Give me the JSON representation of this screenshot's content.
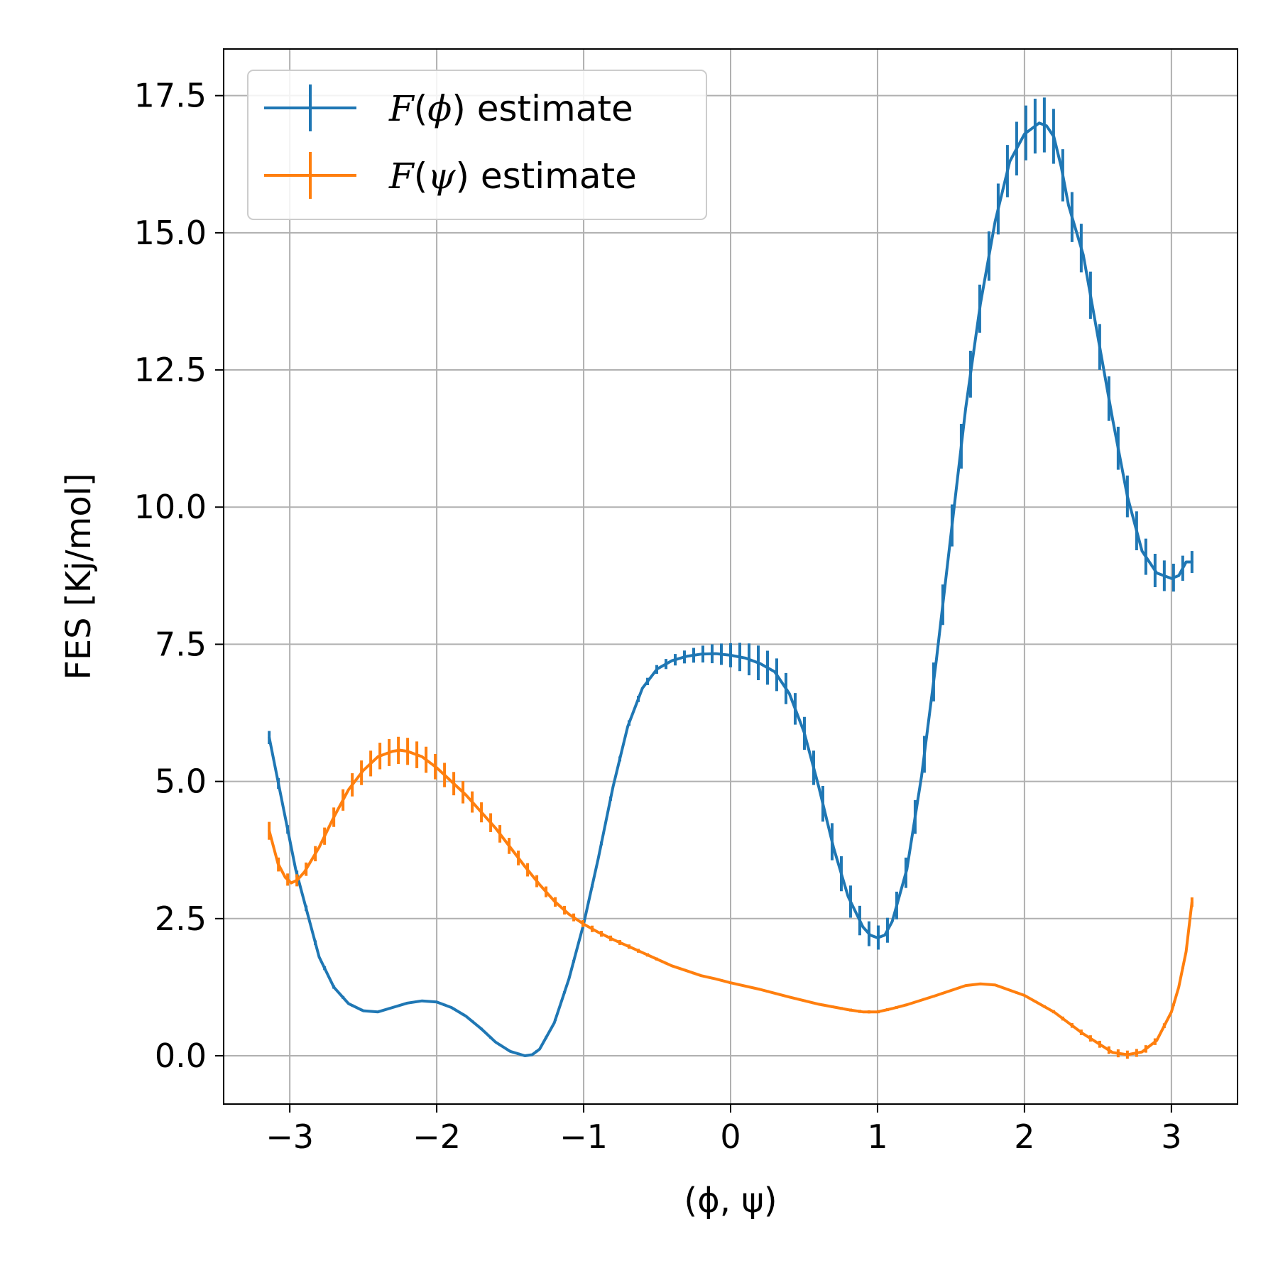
{
  "chart_data": {
    "type": "line",
    "title": "",
    "xlabel": "(ϕ, ψ)",
    "ylabel": "FES [Kj/mol]",
    "xlim": [
      -3.45,
      3.45
    ],
    "ylim": [
      -0.88,
      18.35
    ],
    "grid": true,
    "legend_position": "top-left",
    "x_ticks": [
      -3,
      -2,
      -1,
      0,
      1,
      2,
      3
    ],
    "x_tick_labels": [
      "−3",
      "−2",
      "−1",
      "0",
      "1",
      "2",
      "3"
    ],
    "y_ticks": [
      0,
      2.5,
      5,
      7.5,
      10,
      12.5,
      15,
      17.5
    ],
    "y_tick_labels": [
      "0.0",
      "2.5",
      "5.0",
      "7.5",
      "10.0",
      "12.5",
      "15.0",
      "17.5"
    ],
    "series": [
      {
        "name": "F(ϕ) estimate",
        "legend_func": "F",
        "legend_var": "ϕ",
        "legend_suffix": "estimate",
        "color": "#1f77b4",
        "x": [
          -3.14,
          -3.08,
          -3.02,
          -2.96,
          -2.9,
          -2.8,
          -2.7,
          -2.6,
          -2.5,
          -2.4,
          -2.3,
          -2.2,
          -2.1,
          -2.0,
          -1.9,
          -1.8,
          -1.7,
          -1.6,
          -1.5,
          -1.4,
          -1.35,
          -1.3,
          -1.2,
          -1.1,
          -1.0,
          -0.9,
          -0.8,
          -0.7,
          -0.6,
          -0.5,
          -0.4,
          -0.3,
          -0.2,
          -0.1,
          0.0,
          0.1,
          0.2,
          0.3,
          0.4,
          0.5,
          0.6,
          0.7,
          0.8,
          0.9,
          0.95,
          1.0,
          1.05,
          1.1,
          1.2,
          1.3,
          1.4,
          1.5,
          1.6,
          1.7,
          1.8,
          1.9,
          2.0,
          2.1,
          2.15,
          2.2,
          2.25,
          2.3,
          2.4,
          2.5,
          2.6,
          2.7,
          2.8,
          2.9,
          3.0,
          3.05,
          3.1,
          3.14
        ],
        "y": [
          5.8,
          5.0,
          4.2,
          3.4,
          2.8,
          1.8,
          1.25,
          0.95,
          0.82,
          0.8,
          0.88,
          0.96,
          1.0,
          0.98,
          0.88,
          0.72,
          0.5,
          0.25,
          0.08,
          0.0,
          0.02,
          0.12,
          0.6,
          1.4,
          2.4,
          3.6,
          4.9,
          6.0,
          6.7,
          7.05,
          7.2,
          7.28,
          7.32,
          7.33,
          7.3,
          7.25,
          7.15,
          7.0,
          6.6,
          5.9,
          4.9,
          3.8,
          2.9,
          2.35,
          2.2,
          2.15,
          2.2,
          2.45,
          3.4,
          5.1,
          7.2,
          9.5,
          11.8,
          13.7,
          15.2,
          16.3,
          16.8,
          17.0,
          16.95,
          16.75,
          16.2,
          15.5,
          14.6,
          13.1,
          11.6,
          10.2,
          9.2,
          8.8,
          8.7,
          8.75,
          9.0,
          9.0
        ],
        "yerr": [
          0.12,
          0.1,
          0.08,
          0.06,
          0.05,
          0.04,
          0.03,
          0.02,
          0.02,
          0.02,
          0.02,
          0.02,
          0.02,
          0.02,
          0.02,
          0.02,
          0.02,
          0.02,
          0.02,
          0.02,
          0.02,
          0.02,
          0.02,
          0.02,
          0.03,
          0.03,
          0.04,
          0.05,
          0.06,
          0.08,
          0.1,
          0.12,
          0.15,
          0.18,
          0.22,
          0.28,
          0.32,
          0.3,
          0.28,
          0.3,
          0.32,
          0.34,
          0.3,
          0.26,
          0.22,
          0.22,
          0.22,
          0.24,
          0.28,
          0.33,
          0.36,
          0.38,
          0.42,
          0.44,
          0.46,
          0.48,
          0.5,
          0.5,
          0.5,
          0.5,
          0.48,
          0.46,
          0.44,
          0.42,
          0.4,
          0.38,
          0.34,
          0.3,
          0.26,
          0.24,
          0.22,
          0.2
        ]
      },
      {
        "name": "F(ψ) estimate",
        "legend_func": "F",
        "legend_var": "ψ",
        "legend_suffix": "estimate",
        "color": "#ff7f0e",
        "x": [
          -3.14,
          -3.08,
          -3.03,
          -2.99,
          -2.95,
          -2.9,
          -2.8,
          -2.7,
          -2.6,
          -2.5,
          -2.4,
          -2.3,
          -2.25,
          -2.2,
          -2.1,
          -2.0,
          -1.9,
          -1.8,
          -1.7,
          -1.6,
          -1.5,
          -1.4,
          -1.3,
          -1.2,
          -1.1,
          -1.0,
          -0.9,
          -0.8,
          -0.7,
          -0.6,
          -0.5,
          -0.4,
          -0.3,
          -0.2,
          -0.1,
          0.0,
          0.2,
          0.4,
          0.6,
          0.8,
          0.9,
          1.0,
          1.1,
          1.2,
          1.4,
          1.6,
          1.7,
          1.8,
          2.0,
          2.2,
          2.4,
          2.6,
          2.7,
          2.8,
          2.9,
          3.0,
          3.05,
          3.1,
          3.14
        ],
        "y": [
          4.1,
          3.5,
          3.25,
          3.15,
          3.2,
          3.35,
          3.8,
          4.35,
          4.85,
          5.2,
          5.45,
          5.55,
          5.57,
          5.55,
          5.45,
          5.25,
          5.0,
          4.75,
          4.45,
          4.15,
          3.8,
          3.45,
          3.12,
          2.82,
          2.58,
          2.4,
          2.25,
          2.12,
          2.0,
          1.88,
          1.76,
          1.64,
          1.55,
          1.46,
          1.4,
          1.33,
          1.21,
          1.07,
          0.94,
          0.84,
          0.8,
          0.8,
          0.86,
          0.93,
          1.1,
          1.28,
          1.31,
          1.29,
          1.1,
          0.8,
          0.4,
          0.06,
          0.02,
          0.07,
          0.28,
          0.8,
          1.25,
          1.9,
          2.8
        ]
      }
    ]
  }
}
